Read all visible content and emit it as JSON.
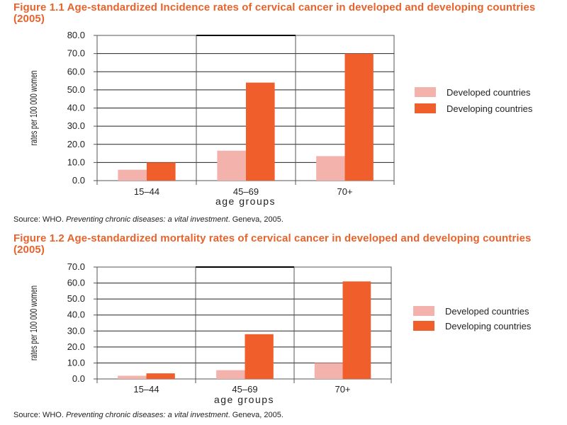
{
  "colors": {
    "developed": "#f3b2ac",
    "developing": "#f05e2b",
    "title": "#e8632b"
  },
  "source_parts": {
    "prefix": "Source: WHO. ",
    "italic": "Preventing chronic diseases: a vital investment",
    "suffix": ". Geneva, 2005."
  },
  "chart_data": [
    {
      "type": "bar",
      "title": "Figure 1.1 Age-standardized Incidence rates of cervical cancer in developed and developing countries (2005)",
      "categories": [
        "15–44",
        "45–69",
        "70+"
      ],
      "series": [
        {
          "name": "Developed countries",
          "values": [
            6.0,
            16.5,
            13.5
          ]
        },
        {
          "name": "Developing countries",
          "values": [
            10.0,
            54.0,
            70.0
          ]
        }
      ],
      "xlabel": "age groups",
      "ylabel": "rates per 100 000 women",
      "ylim": [
        0,
        80
      ],
      "yticks": [
        "0.0",
        "10.0",
        "20.0",
        "30.0",
        "40.0",
        "50.0",
        "60.0",
        "70.0",
        "80.0"
      ],
      "grid": true,
      "legend": "right"
    },
    {
      "type": "bar",
      "title": "Figure 1.2 Age-standardized mortality rates of cervical cancer in developed and developing countries (2005)",
      "categories": [
        "15–44",
        "45–69",
        "70+"
      ],
      "series": [
        {
          "name": "Developed countries",
          "values": [
            2.0,
            5.5,
            10.0
          ]
        },
        {
          "name": "Developing countries",
          "values": [
            3.5,
            28.0,
            61.0
          ]
        }
      ],
      "xlabel": "age groups",
      "ylabel": "rates per 100 000 women",
      "ylim": [
        0,
        70
      ],
      "yticks": [
        "0.0",
        "10.0",
        "20.0",
        "30.0",
        "40.0",
        "50.0",
        "60.0",
        "70.0"
      ],
      "grid": true,
      "legend": "right"
    }
  ]
}
